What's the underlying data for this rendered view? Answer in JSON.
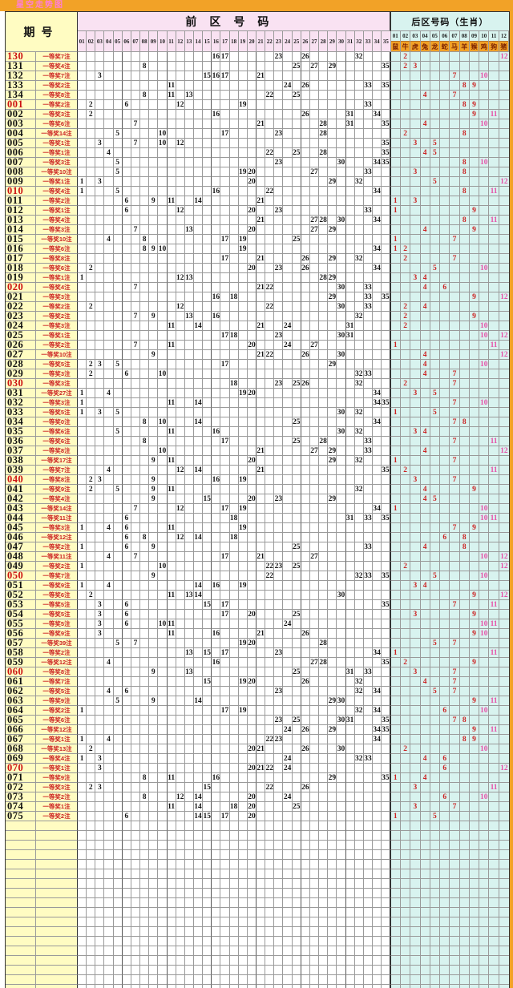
{
  "title": "星空走势图",
  "colors": {
    "frame_orange": "#F2A227",
    "title_pink": "#FF7FD4",
    "issue_bg_yellow": "#FFFCC2",
    "front_bg_pink": "#F9E2F2",
    "back_bg_cyan": "#D8F3EF",
    "red_number": "#CC2222",
    "pink_number": "#E650A8",
    "black_number": "#141414"
  },
  "empty_rows": 19,
  "chart_data": {
    "type": "table",
    "title": "星空走势图",
    "issue_label": "期号",
    "front_zone_label": "前区号码",
    "back_zone_label": "后区号码（生肖）",
    "front_columns": [
      "01",
      "02",
      "03",
      "04",
      "05",
      "06",
      "07",
      "08",
      "09",
      "10",
      "11",
      "12",
      "13",
      "14",
      "15",
      "16",
      "17",
      "18",
      "19",
      "20",
      "21",
      "22",
      "23",
      "24",
      "25",
      "26",
      "27",
      "28",
      "29",
      "30",
      "31",
      "32",
      "33",
      "34",
      "35"
    ],
    "back_columns": [
      "01",
      "02",
      "03",
      "04",
      "05",
      "06",
      "07",
      "08",
      "09",
      "10",
      "11",
      "12"
    ],
    "zodiac": [
      "鼠",
      "牛",
      "虎",
      "兔",
      "龙",
      "蛇",
      "马",
      "羊",
      "猴",
      "鸡",
      "狗",
      "猪"
    ],
    "rows": [
      {
        "issue": "130",
        "red": true,
        "prize": "一等奖7注",
        "front": [
          16,
          17,
          23,
          26,
          32
        ],
        "back": [
          2,
          12
        ]
      },
      {
        "issue": "131",
        "prize": "一等奖4注",
        "front": [
          8,
          25,
          27,
          29,
          35
        ],
        "back": [
          2,
          3
        ]
      },
      {
        "issue": "132",
        "prize": "一等奖7注",
        "front": [
          3,
          15,
          16,
          17,
          21
        ],
        "back": [
          7,
          10
        ]
      },
      {
        "issue": "133",
        "prize": "一等奖2注",
        "front": [
          11,
          24,
          26,
          33,
          35
        ],
        "back": [
          8,
          9
        ]
      },
      {
        "issue": "134",
        "prize": "一等奖8注",
        "front": [
          8,
          11,
          13,
          22,
          25
        ],
        "back": [
          4,
          7
        ]
      },
      {
        "issue": "001",
        "red": true,
        "prize": "一等奖2注",
        "front": [
          2,
          6,
          12,
          19,
          33
        ],
        "back": [
          8,
          9
        ]
      },
      {
        "issue": "002",
        "prize": "一等奖3注",
        "front": [
          2,
          16,
          26,
          31,
          34
        ],
        "back": [
          9,
          11
        ]
      },
      {
        "issue": "003",
        "prize": "一等奖6注",
        "front": [
          7,
          21,
          28,
          31,
          35
        ],
        "back": [
          4,
          10
        ]
      },
      {
        "issue": "004",
        "prize": "一等奖14注",
        "front": [
          5,
          10,
          17,
          23,
          28
        ],
        "back": [
          2,
          8
        ]
      },
      {
        "issue": "005",
        "prize": "一等奖1注",
        "front": [
          3,
          7,
          10,
          12,
          35
        ],
        "back": [
          3,
          5
        ]
      },
      {
        "issue": "006",
        "prize": "一等奖1注",
        "front": [
          4,
          22,
          25,
          28,
          35
        ],
        "back": [
          4,
          5
        ]
      },
      {
        "issue": "007",
        "prize": "一等奖3注",
        "front": [
          5,
          23,
          30,
          34,
          35
        ],
        "back": [
          8,
          10
        ]
      },
      {
        "issue": "008",
        "prize": "一等奖10注",
        "front": [
          5,
          19,
          20,
          27,
          33
        ],
        "back": [
          3,
          8
        ]
      },
      {
        "issue": "009",
        "prize": "一等奖1注",
        "front": [
          1,
          3,
          20,
          29,
          32
        ],
        "back": [
          5,
          12
        ]
      },
      {
        "issue": "010",
        "red": true,
        "prize": "一等奖4注",
        "front": [
          1,
          5,
          16,
          22,
          34
        ],
        "back": [
          8,
          11
        ]
      },
      {
        "issue": "011",
        "prize": "一等奖2注",
        "front": [
          6,
          9,
          11,
          14,
          21
        ],
        "back": [
          1,
          3
        ]
      },
      {
        "issue": "012",
        "prize": "一等奖1注",
        "front": [
          6,
          12,
          20,
          23,
          33
        ],
        "back": [
          1,
          9
        ]
      },
      {
        "issue": "013",
        "prize": "一等奖4注",
        "front": [
          21,
          27,
          28,
          30,
          34
        ],
        "back": [
          8,
          11
        ]
      },
      {
        "issue": "014",
        "prize": "一等奖3注",
        "front": [
          7,
          13,
          20,
          27,
          29
        ],
        "back": [
          4,
          9
        ]
      },
      {
        "issue": "015",
        "prize": "一等奖10注",
        "front": [
          4,
          8,
          17,
          19,
          25
        ],
        "back": [
          1,
          7
        ]
      },
      {
        "issue": "016",
        "prize": "一等奖6注",
        "front": [
          8,
          9,
          10,
          19,
          34
        ],
        "back": [
          1,
          2
        ]
      },
      {
        "issue": "017",
        "prize": "一等奖8注",
        "front": [
          17,
          21,
          26,
          29,
          32
        ],
        "back": [
          2,
          7
        ]
      },
      {
        "issue": "018",
        "prize": "一等奖6注",
        "front": [
          2,
          20,
          23,
          26,
          34
        ],
        "back": [
          5,
          10
        ]
      },
      {
        "issue": "019",
        "prize": "一等奖1注",
        "front": [
          1,
          12,
          13,
          28,
          29
        ],
        "back": [
          3,
          4
        ]
      },
      {
        "issue": "020",
        "red": true,
        "prize": "一等奖4注",
        "front": [
          7,
          21,
          22,
          30,
          33
        ],
        "back": [
          4,
          6
        ]
      },
      {
        "issue": "021",
        "prize": "一等奖3注",
        "front": [
          16,
          18,
          29,
          33,
          35
        ],
        "back": [
          9,
          12
        ]
      },
      {
        "issue": "022",
        "prize": "一等奖2注",
        "front": [
          2,
          12,
          22,
          30,
          33
        ],
        "back": [
          2,
          4
        ]
      },
      {
        "issue": "023",
        "prize": "一等奖2注",
        "front": [
          7,
          9,
          13,
          16,
          32
        ],
        "back": [
          2,
          9
        ]
      },
      {
        "issue": "024",
        "prize": "一等奖3注",
        "front": [
          11,
          14,
          21,
          24,
          31
        ],
        "back": [
          2,
          10
        ]
      },
      {
        "issue": "025",
        "prize": "一等奖1注",
        "front": [
          17,
          18,
          23,
          30,
          31
        ],
        "back": [
          10,
          12
        ]
      },
      {
        "issue": "026",
        "prize": "一等奖2注",
        "front": [
          7,
          11,
          20,
          24,
          27
        ],
        "back": [
          1,
          11
        ]
      },
      {
        "issue": "027",
        "prize": "一等奖10注",
        "front": [
          9,
          21,
          22,
          26,
          30
        ],
        "back": [
          4,
          12
        ]
      },
      {
        "issue": "028",
        "prize": "一等奖5注",
        "front": [
          2,
          3,
          5,
          17,
          29
        ],
        "back": [
          4,
          10
        ]
      },
      {
        "issue": "029",
        "prize": "一等奖3注",
        "front": [
          2,
          6,
          10,
          32,
          33
        ],
        "back": [
          4,
          7
        ]
      },
      {
        "issue": "030",
        "red": true,
        "prize": "一等奖3注",
        "front": [
          18,
          23,
          25,
          26,
          32
        ],
        "back": [
          2,
          7
        ]
      },
      {
        "issue": "031",
        "prize": "一等奖27注",
        "front": [
          1,
          4,
          19,
          20,
          34
        ],
        "back": [
          3,
          5
        ]
      },
      {
        "issue": "032",
        "prize": "一等奖3注",
        "front": [
          1,
          11,
          14,
          34,
          35
        ],
        "back": [
          7,
          10
        ]
      },
      {
        "issue": "033",
        "prize": "一等奖5注",
        "front": [
          1,
          3,
          5,
          30,
          32
        ],
        "back": [
          1,
          5
        ]
      },
      {
        "issue": "034",
        "prize": "一等奖0注",
        "front": [
          8,
          10,
          14,
          25,
          34
        ],
        "back": [
          7,
          8
        ]
      },
      {
        "issue": "035",
        "prize": "一等奖6注",
        "front": [
          5,
          11,
          16,
          30,
          32
        ],
        "back": [
          3,
          4
        ]
      },
      {
        "issue": "036",
        "prize": "一等奖6注",
        "front": [
          8,
          17,
          25,
          28,
          33
        ],
        "back": [
          7,
          11
        ]
      },
      {
        "issue": "037",
        "prize": "一等奖8注",
        "front": [
          10,
          21,
          27,
          29,
          33
        ],
        "back": [
          4,
          12
        ]
      },
      {
        "issue": "038",
        "prize": "一等奖17注",
        "front": [
          9,
          11,
          20,
          29,
          32
        ],
        "back": [
          1,
          7
        ]
      },
      {
        "issue": "039",
        "prize": "一等奖7注",
        "front": [
          4,
          12,
          14,
          21,
          35
        ],
        "back": [
          2,
          11
        ]
      },
      {
        "issue": "040",
        "red": true,
        "prize": "一等奖8注",
        "front": [
          2,
          3,
          9,
          16,
          19
        ],
        "back": [
          3,
          7
        ]
      },
      {
        "issue": "041",
        "prize": "一等奖9注",
        "front": [
          2,
          5,
          9,
          11,
          32
        ],
        "back": [
          4,
          9
        ]
      },
      {
        "issue": "042",
        "prize": "一等奖4注",
        "front": [
          9,
          15,
          20,
          23,
          29
        ],
        "back": [
          4,
          5
        ]
      },
      {
        "issue": "043",
        "prize": "一等奖14注",
        "front": [
          7,
          12,
          17,
          19,
          34
        ],
        "back": [
          1,
          10
        ]
      },
      {
        "issue": "044",
        "prize": "一等奖11注",
        "front": [
          6,
          18,
          31,
          33,
          35
        ],
        "back": [
          10,
          11
        ]
      },
      {
        "issue": "045",
        "prize": "一等奖3注",
        "front": [
          1,
          4,
          6,
          11,
          19
        ],
        "back": [
          7,
          9
        ]
      },
      {
        "issue": "046",
        "prize": "一等奖12注",
        "front": [
          6,
          8,
          12,
          14,
          18
        ],
        "back": [
          6,
          8
        ]
      },
      {
        "issue": "047",
        "prize": "一等奖2注",
        "front": [
          1,
          6,
          9,
          25,
          33
        ],
        "back": [
          4,
          8
        ]
      },
      {
        "issue": "048",
        "prize": "一等奖11注",
        "front": [
          4,
          7,
          17,
          21,
          27
        ],
        "back": [
          10,
          12
        ]
      },
      {
        "issue": "049",
        "prize": "一等奖2注",
        "front": [
          1,
          10,
          22,
          23,
          25
        ],
        "back": [
          2,
          12
        ]
      },
      {
        "issue": "050",
        "red": true,
        "prize": "一等奖7注",
        "front": [
          9,
          22,
          32,
          33,
          35
        ],
        "back": [
          5,
          10
        ]
      },
      {
        "issue": "051",
        "prize": "一等奖9注",
        "front": [
          1,
          4,
          14,
          16,
          19
        ],
        "back": [
          3,
          4
        ]
      },
      {
        "issue": "052",
        "prize": "一等奖6注",
        "front": [
          2,
          11,
          13,
          14,
          30
        ],
        "back": [
          9,
          12
        ]
      },
      {
        "issue": "053",
        "prize": "一等奖5注",
        "front": [
          3,
          6,
          15,
          17,
          35
        ],
        "back": [
          7,
          11
        ]
      },
      {
        "issue": "054",
        "prize": "一等奖5注",
        "front": [
          3,
          6,
          17,
          20,
          25
        ],
        "back": [
          3,
          9
        ]
      },
      {
        "issue": "055",
        "prize": "一等奖5注",
        "front": [
          3,
          6,
          10,
          11,
          24
        ],
        "back": [
          10,
          11
        ]
      },
      {
        "issue": "056",
        "prize": "一等奖9注",
        "front": [
          3,
          11,
          16,
          21,
          26
        ],
        "back": [
          9,
          10
        ]
      },
      {
        "issue": "057",
        "prize": "一等奖39注",
        "front": [
          5,
          7,
          19,
          20,
          28
        ],
        "back": [
          5,
          7
        ]
      },
      {
        "issue": "058",
        "prize": "一等奖2注",
        "front": [
          13,
          15,
          17,
          23,
          34
        ],
        "back": [
          1,
          11
        ]
      },
      {
        "issue": "059",
        "prize": "一等奖12注",
        "front": [
          4,
          16,
          27,
          28,
          35
        ],
        "back": [
          2,
          9
        ]
      },
      {
        "issue": "060",
        "red": true,
        "prize": "一等奖8注",
        "front": [
          9,
          13,
          25,
          31,
          33
        ],
        "back": [
          3,
          7
        ]
      },
      {
        "issue": "061",
        "prize": "一等奖7注",
        "front": [
          15,
          19,
          20,
          26,
          32
        ],
        "back": [
          4,
          7
        ]
      },
      {
        "issue": "062",
        "prize": "一等奖5注",
        "front": [
          4,
          6,
          23,
          32,
          34
        ],
        "back": [
          5,
          7
        ]
      },
      {
        "issue": "063",
        "prize": "一等奖9注",
        "front": [
          5,
          9,
          14,
          29,
          30
        ],
        "back": [
          9,
          11
        ]
      },
      {
        "issue": "064",
        "prize": "一等奖2注",
        "front": [
          1,
          17,
          19,
          32,
          34
        ],
        "back": [
          6,
          10
        ]
      },
      {
        "issue": "065",
        "prize": "一等奖6注",
        "front": [
          23,
          25,
          30,
          31,
          35
        ],
        "back": [
          7,
          8
        ]
      },
      {
        "issue": "066",
        "prize": "一等奖12注",
        "front": [
          24,
          26,
          29,
          34,
          35
        ],
        "back": [
          9,
          11
        ]
      },
      {
        "issue": "067",
        "prize": "一等奖1注",
        "front": [
          1,
          4,
          22,
          23,
          34
        ],
        "back": [
          8,
          9
        ]
      },
      {
        "issue": "068",
        "prize": "一等奖13注",
        "front": [
          2,
          20,
          21,
          26,
          30
        ],
        "back": [
          2,
          10
        ]
      },
      {
        "issue": "069",
        "prize": "一等奖4注",
        "front": [
          1,
          3,
          24,
          32,
          33
        ],
        "back": [
          4,
          6
        ]
      },
      {
        "issue": "070",
        "red": true,
        "prize": "一等奖1注",
        "front": [
          3,
          20,
          21,
          22,
          24
        ],
        "back": [
          6,
          12
        ]
      },
      {
        "issue": "071",
        "prize": "一等奖9注",
        "front": [
          8,
          11,
          16,
          29,
          35
        ],
        "back": [
          1,
          4
        ]
      },
      {
        "issue": "072",
        "prize": "一等奖3注",
        "front": [
          2,
          3,
          15,
          22,
          26
        ],
        "back": [
          3,
          11
        ]
      },
      {
        "issue": "073",
        "prize": "一等奖2注",
        "front": [
          8,
          12,
          14,
          20,
          24
        ],
        "back": [
          6,
          10
        ]
      },
      {
        "issue": "074",
        "prize": "一等奖1注",
        "front": [
          11,
          14,
          18,
          20,
          25
        ],
        "back": [
          3,
          7
        ]
      },
      {
        "issue": "075",
        "prize": "一等奖2注",
        "front": [
          6,
          14,
          15,
          17,
          20
        ],
        "back": [
          1,
          5
        ]
      }
    ]
  }
}
